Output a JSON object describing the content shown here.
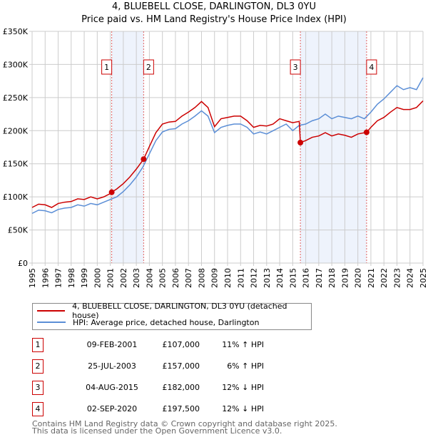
{
  "chart_data": {
    "type": "line",
    "title": "4, BLUEBELL CLOSE, DARLINGTON, DL3 0YU",
    "subtitle": "Price paid vs. HM Land Registry's House Price Index (HPI)",
    "xlim": [
      1995,
      2025
    ],
    "ylim": [
      0,
      350000
    ],
    "x_ticks": [
      "1995",
      "1996",
      "1997",
      "1998",
      "1999",
      "2000",
      "2001",
      "2002",
      "2003",
      "2004",
      "2005",
      "2006",
      "2007",
      "2008",
      "2009",
      "2010",
      "2011",
      "2012",
      "2013",
      "2014",
      "2015",
      "2016",
      "2017",
      "2018",
      "2019",
      "2020",
      "2021",
      "2022",
      "2023",
      "2024",
      "2025"
    ],
    "y_ticks": [
      {
        "v": 0,
        "label": "£0"
      },
      {
        "v": 50000,
        "label": "£50K"
      },
      {
        "v": 100000,
        "label": "£100K"
      },
      {
        "v": 150000,
        "label": "£150K"
      },
      {
        "v": 200000,
        "label": "£200K"
      },
      {
        "v": 250000,
        "label": "£250K"
      },
      {
        "v": 300000,
        "label": "£300K"
      },
      {
        "v": 350000,
        "label": "£350K"
      }
    ],
    "grid": true,
    "series": [
      {
        "name": "4, BLUEBELL CLOSE, DARLINGTON, DL3 0YU (detached house)",
        "color": "#cc0000",
        "x": [
          1995,
          1995.5,
          1996,
          1996.5,
          1997,
          1997.5,
          1998,
          1998.5,
          1999,
          1999.5,
          2000,
          2000.5,
          2001,
          2001.11,
          2001.5,
          2002,
          2002.5,
          2003,
          2003.56,
          2004,
          2004.5,
          2005,
          2005.5,
          2006,
          2006.5,
          2007,
          2007.5,
          2008,
          2008.5,
          2009,
          2009.5,
          2010,
          2010.5,
          2011,
          2011.5,
          2012,
          2012.5,
          2013,
          2013.5,
          2014,
          2014.5,
          2015,
          2015.5,
          2015.59,
          2016,
          2016.5,
          2017,
          2017.5,
          2018,
          2018.5,
          2019,
          2019.5,
          2020,
          2020.67,
          2021,
          2021.5,
          2022,
          2022.5,
          2023,
          2023.5,
          2024,
          2024.5,
          2025
        ],
        "y": [
          84000,
          89000,
          88000,
          84000,
          90000,
          92000,
          93000,
          97000,
          96000,
          100000,
          97000,
          100000,
          105000,
          107000,
          112000,
          120000,
          130000,
          142000,
          157000,
          176000,
          197000,
          210000,
          213000,
          214000,
          222000,
          228000,
          235000,
          244000,
          235000,
          206000,
          218000,
          220000,
          222000,
          222000,
          215000,
          205000,
          208000,
          207000,
          210000,
          218000,
          215000,
          212000,
          214000,
          182000,
          185000,
          190000,
          192000,
          197000,
          192000,
          195000,
          193000,
          190000,
          195000,
          197500,
          205000,
          215000,
          220000,
          228000,
          235000,
          232000,
          232000,
          235000,
          245000
        ]
      },
      {
        "name": "HPI: Average price, detached house, Darlington",
        "color": "#5b8ed6",
        "x": [
          1995,
          1995.5,
          1996,
          1996.5,
          1997,
          1997.5,
          1998,
          1998.5,
          1999,
          1999.5,
          2000,
          2000.5,
          2001,
          2001.5,
          2002,
          2002.5,
          2003,
          2003.5,
          2004,
          2004.5,
          2005,
          2005.5,
          2006,
          2006.5,
          2007,
          2007.5,
          2008,
          2008.5,
          2009,
          2009.5,
          2010,
          2010.5,
          2011,
          2011.5,
          2012,
          2012.5,
          2013,
          2013.5,
          2014,
          2014.5,
          2015,
          2015.5,
          2016,
          2016.5,
          2017,
          2017.5,
          2018,
          2018.5,
          2019,
          2019.5,
          2020,
          2020.5,
          2021,
          2021.5,
          2022,
          2022.5,
          2023,
          2023.5,
          2024,
          2024.5,
          2025
        ],
        "y": [
          75000,
          80000,
          79000,
          76000,
          81000,
          83000,
          84000,
          88000,
          86000,
          90000,
          88000,
          92000,
          96000,
          100000,
          108000,
          118000,
          130000,
          145000,
          165000,
          185000,
          198000,
          202000,
          203000,
          210000,
          215000,
          222000,
          230000,
          222000,
          197000,
          205000,
          208000,
          210000,
          210000,
          205000,
          195000,
          198000,
          195000,
          200000,
          205000,
          210000,
          200000,
          208000,
          210000,
          215000,
          218000,
          225000,
          218000,
          222000,
          220000,
          218000,
          222000,
          218000,
          228000,
          240000,
          248000,
          258000,
          268000,
          262000,
          265000,
          262000,
          280000
        ]
      }
    ],
    "sales": [
      {
        "n": "1",
        "x": 2001.11,
        "price": 107000,
        "date": "09-FEB-2001",
        "price_label": "£107,000",
        "hpi": "11% ↑ HPI"
      },
      {
        "n": "2",
        "x": 2003.56,
        "price": 157000,
        "date": "25-JUL-2003",
        "price_label": "£157,000",
        "hpi": "6% ↑ HPI"
      },
      {
        "n": "3",
        "x": 2015.59,
        "price": 182000,
        "date": "04-AUG-2015",
        "price_label": "£182,000",
        "hpi": "12% ↓ HPI"
      },
      {
        "n": "4",
        "x": 2020.67,
        "price": 197500,
        "date": "02-SEP-2020",
        "price_label": "£197,500",
        "hpi": "12% ↓ HPI"
      }
    ],
    "shaded_ranges": [
      [
        2001.11,
        2003.56
      ],
      [
        2015.59,
        2020.67
      ]
    ],
    "shade_color": "#eef3fc",
    "legend": "below"
  },
  "footer": [
    "Contains HM Land Registry data © Crown copyright and database right 2025.",
    "This data is licensed under the Open Government Licence v3.0."
  ]
}
